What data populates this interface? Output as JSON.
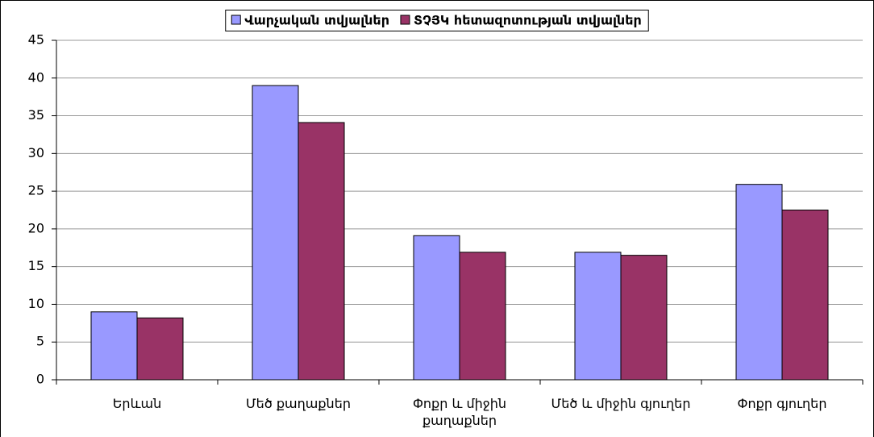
{
  "chart_data": {
    "type": "bar",
    "categories": [
      "Երևան",
      "Մեծ քաղաքներ",
      "Փոքր և միջին քաղաքներ",
      "Մեծ և միջին գյուղեր",
      "Փոքր գյուղեր"
    ],
    "series": [
      {
        "name": "Վարչական տվյալներ",
        "color": "#9999ff",
        "values": [
          9,
          39,
          19.1,
          16.9,
          25.9
        ]
      },
      {
        "name": "ՏՉՅԿ հետազոտության տվյալներ",
        "color": "#993366",
        "values": [
          8.2,
          34.1,
          16.9,
          16.5,
          22.5
        ]
      }
    ],
    "ylim": [
      0,
      45
    ],
    "yticks": [
      0,
      5,
      10,
      15,
      20,
      25,
      30,
      35,
      40,
      45
    ],
    "grid": true,
    "legend": "top"
  }
}
